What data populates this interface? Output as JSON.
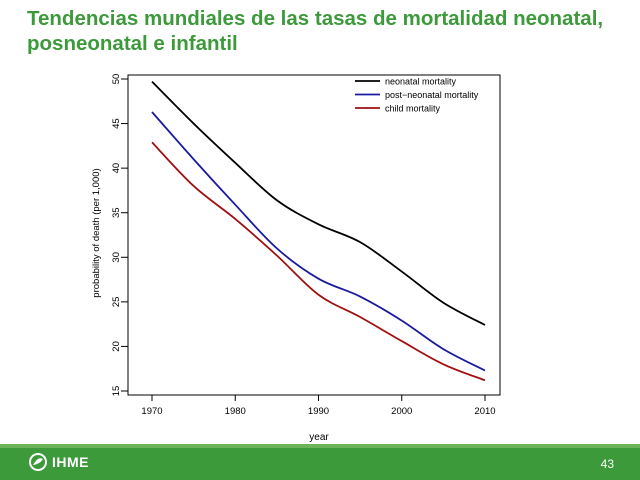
{
  "slide": {
    "title": "Tendencias mundiales de las tasas de mortalidad neonatal, posneonatal e infantil",
    "page_number": "43",
    "brand_label": "IHME"
  },
  "colors": {
    "title": "#3d9a3b",
    "footer": "#3d9a3b",
    "neonatal": "#000000",
    "post_neonatal": "#1a1aa0",
    "child": "#a01010"
  },
  "chart_data": {
    "type": "line",
    "title": "",
    "xlabel": "year",
    "ylabel": "probability of death (per 1,000)",
    "xlim": [
      1970,
      2010
    ],
    "ylim": [
      15,
      50
    ],
    "x_ticks": [
      1970,
      1980,
      1990,
      2000,
      2010
    ],
    "y_ticks": [
      15,
      20,
      25,
      30,
      35,
      40,
      45,
      50
    ],
    "grid": false,
    "legend_position": "top-right",
    "x": [
      1970,
      1975,
      1980,
      1985,
      1990,
      1995,
      2000,
      2005,
      2010
    ],
    "series": [
      {
        "name": "neonatal mortality",
        "color": "#000000",
        "values": [
          49.7,
          45.0,
          40.6,
          36.4,
          33.7,
          31.7,
          28.4,
          24.9,
          22.4
        ]
      },
      {
        "name": "post−neonatal mortality",
        "color": "#1a1aa0",
        "values": [
          46.3,
          41.0,
          35.9,
          31.0,
          27.6,
          25.6,
          22.9,
          19.7,
          17.3
        ]
      },
      {
        "name": "child mortality",
        "color": "#a01010",
        "values": [
          42.9,
          38.0,
          34.3,
          30.2,
          25.8,
          23.3,
          20.6,
          18.0,
          16.2
        ]
      }
    ]
  }
}
